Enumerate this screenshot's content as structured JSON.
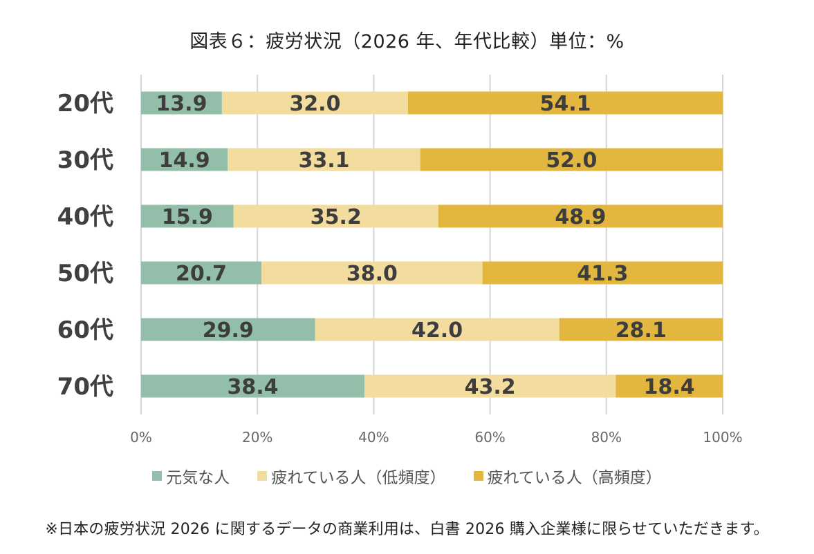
{
  "chart_data": {
    "type": "bar",
    "orientation": "horizontal",
    "stacked": "percent",
    "title": "図表６：疲労状況（2026 年、年代比較）単位：%",
    "categories": [
      "20代",
      "30代",
      "40代",
      "50代",
      "60代",
      "70代"
    ],
    "series": [
      {
        "name": "元気な人",
        "color": "#93bfaa",
        "values": [
          13.9,
          14.9,
          15.9,
          20.7,
          29.9,
          38.4
        ]
      },
      {
        "name": "疲れている人（低頻度）",
        "color": "#f2dc9e",
        "values": [
          32.0,
          33.1,
          35.2,
          38.0,
          42.0,
          43.2
        ]
      },
      {
        "name": "疲れている人（高頻度）",
        "color": "#e3b640",
        "values": [
          54.1,
          52.0,
          48.9,
          41.3,
          28.1,
          18.4
        ]
      }
    ],
    "xticks": [
      "0%",
      "20%",
      "40%",
      "60%",
      "80%",
      "100%"
    ],
    "xlim": [
      0,
      100
    ],
    "grid": true,
    "legend": "bottom"
  },
  "footnote": "※日本の疲労状況 2026 に関するデータの商業利用は、白書 2026 購入企業様に限らせていただきます。"
}
